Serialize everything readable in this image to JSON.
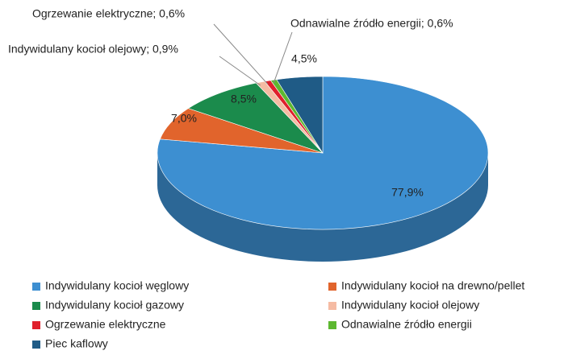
{
  "chart_data": {
    "type": "pie",
    "categories": [
      "Indywidulany kocioł węglowy",
      "Indywidulany kocioł na drewno/pellet",
      "Indywidulany kocioł gazowy",
      "Indywidulany kocioł olejowy",
      "Ogrzewanie elektryczne",
      "Odnawialne źródło energii",
      "Piec kaflowy"
    ],
    "values": [
      77.9,
      7.0,
      8.5,
      0.9,
      0.6,
      0.6,
      4.5
    ],
    "value_labels": [
      "77,9%",
      "7,0%",
      "8,5%",
      "Indywidulany kocioł olejowy; 0,9%",
      "Ogrzewanie elektryczne; 0,6%",
      "Odnawialne źródło energii; 0,6%",
      "4,5%"
    ],
    "colors": [
      "#3d8fd1",
      "#e1642c",
      "#1b8b4c",
      "#f5bba3",
      "#e0202c",
      "#5db830",
      "#1f5b86"
    ],
    "legend": "bottom"
  }
}
